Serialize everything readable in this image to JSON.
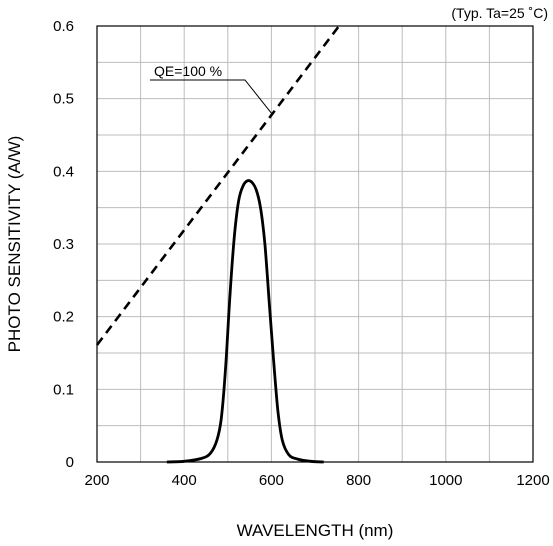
{
  "chart_data": {
    "type": "line",
    "note": "(Typ. Ta=25 ˚C)",
    "xlabel": "WAVELENGTH (nm)",
    "ylabel": "PHOTO SENSITIVITY (A/W)",
    "xlim": [
      200,
      1200
    ],
    "ylim": [
      0,
      0.6
    ],
    "x_ticks": [
      200,
      400,
      600,
      800,
      1000,
      1200
    ],
    "x_tick_labels": [
      "200",
      "400",
      "600",
      "800",
      "1000",
      "1200"
    ],
    "y_ticks": [
      0,
      0.1,
      0.2,
      0.3,
      0.4,
      0.5,
      0.6
    ],
    "y_tick_labels": [
      "0",
      "0.1",
      "0.2",
      "0.3",
      "0.4",
      "0.5",
      "0.6"
    ],
    "x_grid_step": 100,
    "y_grid_step": 0.05,
    "grid": true,
    "series": [
      {
        "style": "solid",
        "x": [
          360,
          400,
          440,
          460,
          475,
          485,
          495,
          505,
          515,
          525,
          535,
          545,
          555,
          565,
          575,
          585,
          595,
          605,
          615,
          625,
          640,
          660,
          690,
          720
        ],
        "y": [
          0,
          0.001,
          0.005,
          0.012,
          0.03,
          0.06,
          0.13,
          0.23,
          0.31,
          0.36,
          0.38,
          0.387,
          0.385,
          0.375,
          0.35,
          0.3,
          0.22,
          0.14,
          0.07,
          0.03,
          0.01,
          0.004,
          0.001,
          0
        ]
      },
      {
        "name": "QE=100 %",
        "style": "dashed",
        "x": [
          200,
          755
        ],
        "y": [
          0.161,
          0.6
        ]
      }
    ],
    "annotations": [
      {
        "text": "QE=100 %",
        "points_to": {
          "x": 600,
          "y": 0.48
        }
      }
    ]
  }
}
